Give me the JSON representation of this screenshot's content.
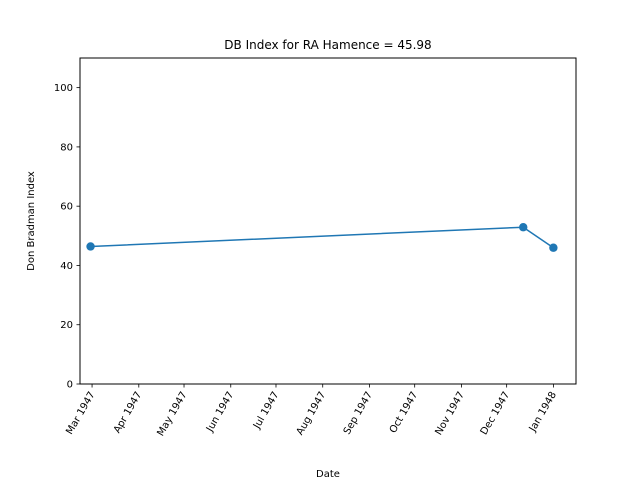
{
  "chart_data": {
    "type": "line",
    "title": "DB Index for RA Hamence = 45.98",
    "xlabel": "Date",
    "ylabel": "Don Bradman Index",
    "ylim": [
      0,
      110
    ],
    "yticks": [
      0,
      20,
      40,
      60,
      80,
      100
    ],
    "xlim": [
      "1947-02-21",
      "1948-01-16"
    ],
    "xticks": [
      {
        "date": "1947-03-01",
        "label": "Mar 1947"
      },
      {
        "date": "1947-04-01",
        "label": "Apr 1947"
      },
      {
        "date": "1947-05-01",
        "label": "May 1947"
      },
      {
        "date": "1947-06-01",
        "label": "Jun 1947"
      },
      {
        "date": "1947-07-01",
        "label": "Jul 1947"
      },
      {
        "date": "1947-08-01",
        "label": "Aug 1947"
      },
      {
        "date": "1947-09-01",
        "label": "Sep 1947"
      },
      {
        "date": "1947-10-01",
        "label": "Oct 1947"
      },
      {
        "date": "1947-11-01",
        "label": "Nov 1947"
      },
      {
        "date": "1947-12-01",
        "label": "Dec 1947"
      },
      {
        "date": "1948-01-01",
        "label": "Jan 1948"
      }
    ],
    "series": [
      {
        "color": "#1f77b4",
        "x": [
          "1947-02-28",
          "1947-12-12",
          "1948-01-01"
        ],
        "values": [
          46.4,
          52.9,
          45.98
        ]
      }
    ],
    "grid": false
  }
}
